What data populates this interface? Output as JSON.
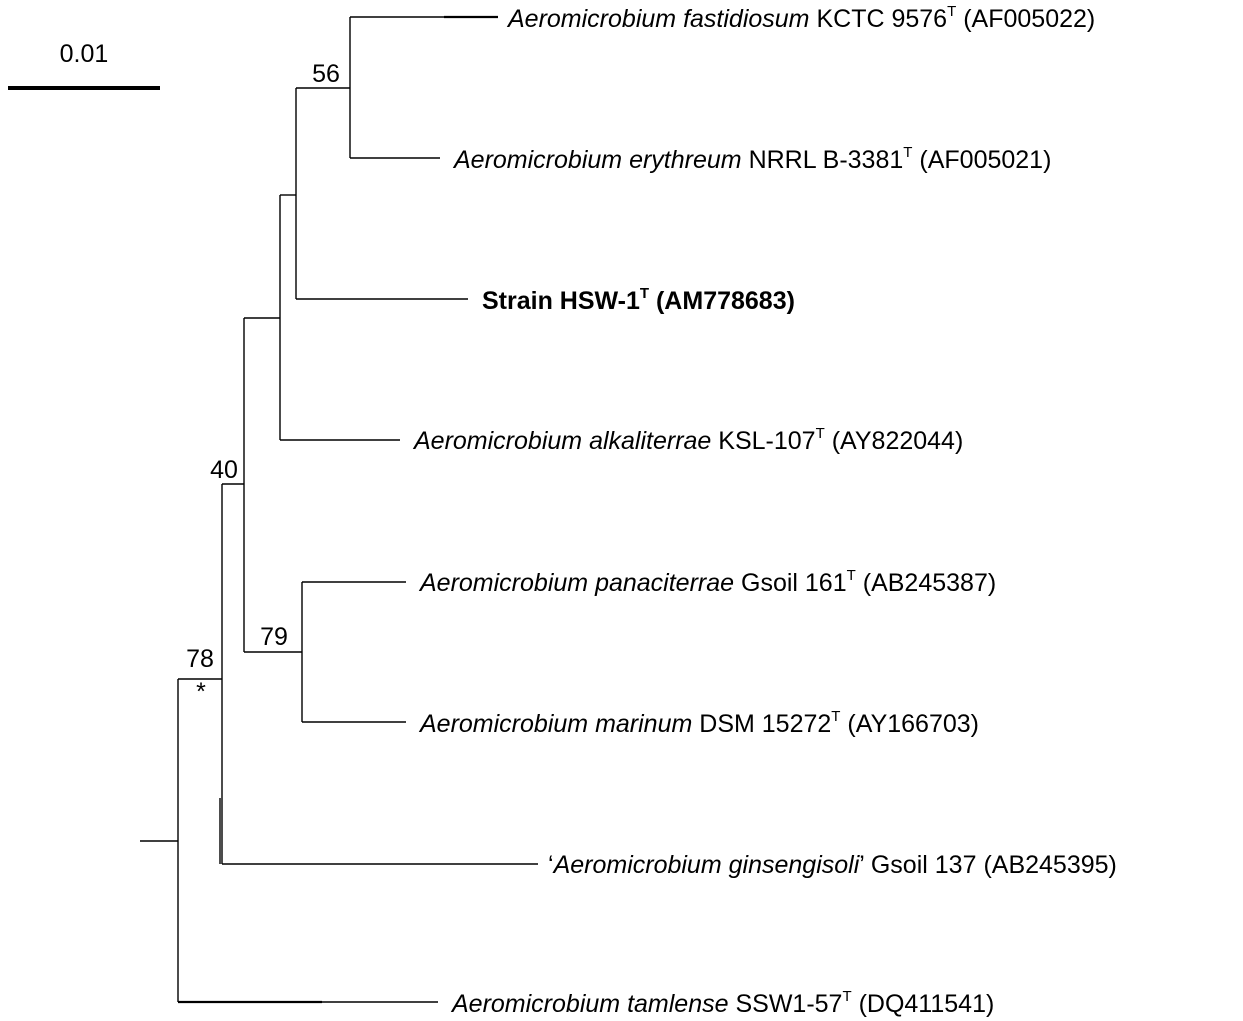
{
  "scale_bar": {
    "label": "0.01"
  },
  "taxa": {
    "fastidiosum": {
      "genus": "Aeromicrobium",
      "epithet": "fastidiosum",
      "strain": "KCTC 9576",
      "type_mark": "T",
      "accession": "(AF005022)"
    },
    "erythreum": {
      "genus": "Aeromicrobium",
      "epithet": "erythreum",
      "strain": "NRRL B-3381",
      "type_mark": "T",
      "accession": "(AF005021)"
    },
    "hsw1": {
      "name": "Strain HSW-1",
      "type_mark": "T",
      "accession": "(AM778683)"
    },
    "alkaliterrae": {
      "genus": "Aeromicrobium",
      "epithet": "alkaliterrae",
      "strain": "KSL-107",
      "type_mark": "T",
      "accession": "(AY822044)"
    },
    "panaciterrae": {
      "genus": "Aeromicrobium",
      "epithet": "panaciterrae",
      "strain": "Gsoil 161",
      "type_mark": "T",
      "accession": "(AB245387)"
    },
    "marinum": {
      "genus": "Aeromicrobium",
      "epithet": "marinum",
      "strain": "DSM 15272",
      "type_mark": "T",
      "accession": "(AY166703)"
    },
    "ginsengisoli": {
      "open_quote": "‘",
      "genus": "Aeromicrobium",
      "epithet": "ginsengisoli",
      "close_quote": "’",
      "strain": "Gsoil 137",
      "accession": "(AB245395)"
    },
    "tamlense": {
      "genus": "Aeromicrobium",
      "epithet": "tamlense",
      "strain": "SSW1-57",
      "type_mark": "T",
      "accession": "(DQ411541)"
    }
  },
  "bootstrap": {
    "n56": "56",
    "n40": "40",
    "n79": "79",
    "n78": "78",
    "n78_mark": "*"
  }
}
